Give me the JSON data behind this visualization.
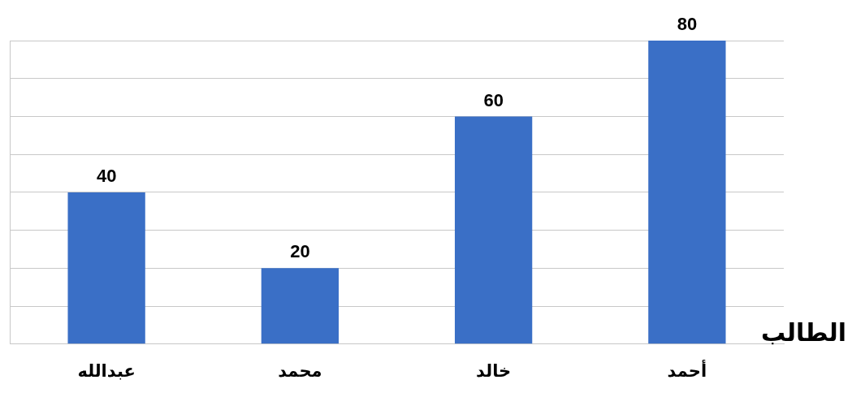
{
  "chart_data": {
    "type": "bar",
    "xlabel": "الطالب",
    "categories": [
      "عبدالله",
      "محمد",
      "خالد",
      "أحمد"
    ],
    "values": [
      40,
      20,
      60,
      80
    ],
    "color": "#3a6fc6",
    "ylim": [
      0,
      80
    ],
    "yticks": [
      {
        "value": 0,
        "label": null
      },
      {
        "value": 10,
        "label": null
      },
      {
        "value": 20,
        "label": null
      },
      {
        "value": 30,
        "label": null
      },
      {
        "value": 40,
        "label": null
      },
      {
        "value": 50,
        "label": null
      },
      {
        "value": 60,
        "label": null
      },
      {
        "value": 70,
        "label": null
      },
      {
        "value": 80,
        "label": null
      }
    ],
    "tick_labels": "x",
    "grid": "y",
    "data_labels": true
  }
}
